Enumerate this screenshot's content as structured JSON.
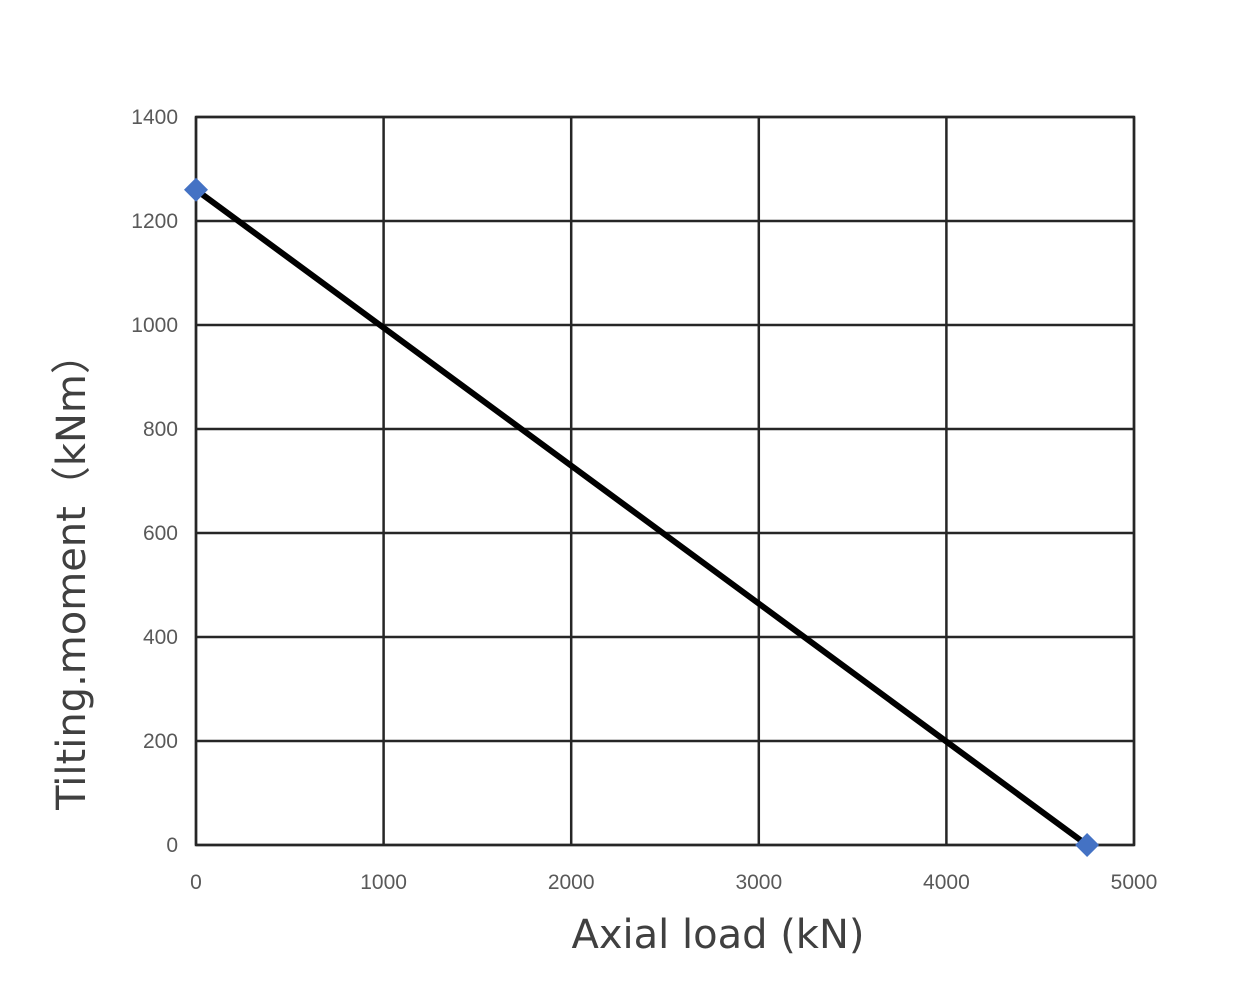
{
  "chart_data": {
    "type": "line",
    "xlabel": "Axial load (kN)",
    "ylabel": "Tilting.moment（kNm）",
    "xlim": [
      0,
      5000
    ],
    "ylim": [
      0,
      1400
    ],
    "x_ticks": [
      "0",
      "1000",
      "2000",
      "3000",
      "4000",
      "5000"
    ],
    "y_ticks": [
      "0",
      "200",
      "400",
      "600",
      "800",
      "1000",
      "1200",
      "1400"
    ],
    "grid": true,
    "legend": "none",
    "series": [
      {
        "x": [
          0,
          4750
        ],
        "y": [
          1260,
          0
        ],
        "line_color": "#000000",
        "marker_color": "#4472c4",
        "marker": "diamond"
      }
    ]
  }
}
